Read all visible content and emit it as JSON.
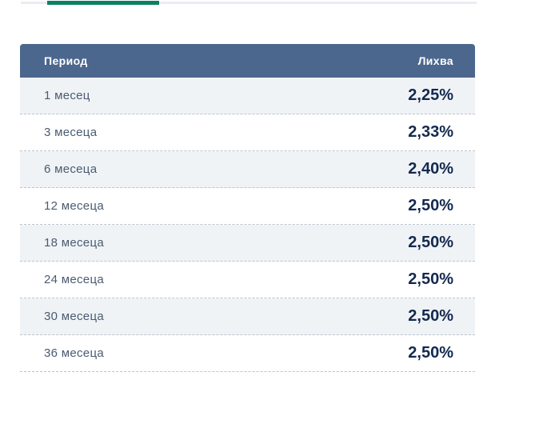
{
  "tabs": {
    "active_indicator": "active-deposit-tab"
  },
  "table": {
    "columns": [
      {
        "label": "Период"
      },
      {
        "label": "Лихва"
      }
    ],
    "rows": [
      {
        "period": "1 месец",
        "rate": "2,25%"
      },
      {
        "period": "3 месеца",
        "rate": "2,33%"
      },
      {
        "period": "6 месеца",
        "rate": "2,40%"
      },
      {
        "period": "12 месеца",
        "rate": "2,50%"
      },
      {
        "period": "18 месеца",
        "rate": "2,50%"
      },
      {
        "period": "24 месеца",
        "rate": "2,50%"
      },
      {
        "period": "30 месеца",
        "rate": "2,50%"
      },
      {
        "period": "36 месеца",
        "rate": "2,50%"
      }
    ]
  },
  "colors": {
    "accent": "#0d7f63",
    "tab_track": "#e9edf1",
    "header_bg": "#4c678e",
    "header_text": "#ffffff",
    "row_alt_bg": "#f0f3f6",
    "row_label": "#4a5b72",
    "row_value": "#13294f",
    "dashed_divider": "#bcc5cf"
  }
}
